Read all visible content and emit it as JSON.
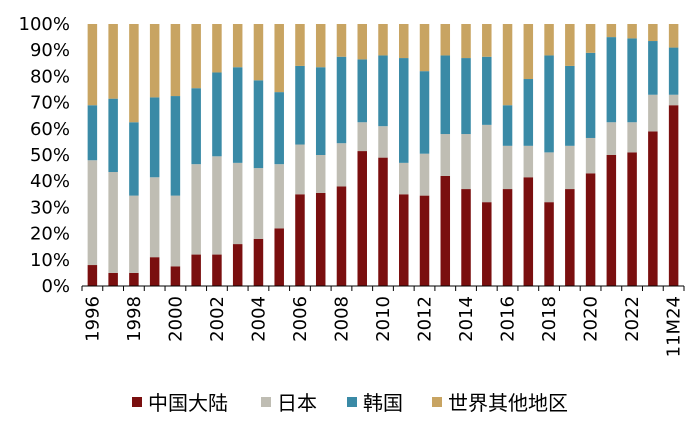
{
  "chart_data": {
    "type": "bar",
    "stacked": true,
    "title": "",
    "xlabel": "",
    "ylabel": "",
    "ylim": [
      0,
      100
    ],
    "y_ticks": [
      "0%",
      "10%",
      "20%",
      "30%",
      "40%",
      "50%",
      "60%",
      "70%",
      "80%",
      "90%",
      "100%"
    ],
    "categories": [
      "1996",
      "1997",
      "1998",
      "1999",
      "2000",
      "2001",
      "2002",
      "2003",
      "2004",
      "2005",
      "2006",
      "2007",
      "2008",
      "2009",
      "2010",
      "2011",
      "2012",
      "2013",
      "2014",
      "2015",
      "2016",
      "2017",
      "2018",
      "2019",
      "2020",
      "2021",
      "2022",
      "2023",
      "11M24"
    ],
    "x_tick_labels": [
      "1996",
      "1998",
      "2000",
      "2002",
      "2004",
      "2006",
      "2008",
      "2010",
      "2012",
      "2014",
      "2016",
      "2018",
      "2020",
      "2022",
      "11M24"
    ],
    "series": [
      {
        "name": "中国大陆",
        "color": "#7a0f0f",
        "values": [
          8,
          5,
          5,
          11,
          7.5,
          12,
          12,
          16,
          18,
          22,
          35,
          35.5,
          38,
          51.5,
          49,
          35,
          34.5,
          42,
          37,
          32,
          37,
          41.5,
          32,
          37,
          43,
          50,
          51,
          59,
          69
        ]
      },
      {
        "name": "日本",
        "color": "#bfbdb3",
        "values": [
          40,
          38.5,
          29.5,
          30.5,
          27,
          34.5,
          37.5,
          31,
          27,
          24.5,
          19,
          14.5,
          16.5,
          11,
          12,
          12,
          16,
          16,
          21,
          29.5,
          16.5,
          12,
          19,
          16.5,
          13.5,
          12.5,
          11.5,
          14,
          4
        ]
      },
      {
        "name": "韩国",
        "color": "#3a8aa6",
        "values": [
          21,
          28,
          28,
          30.5,
          38,
          29,
          32,
          36.5,
          33.5,
          27.5,
          30,
          33.5,
          33,
          24,
          27,
          40,
          31.5,
          30,
          29,
          26,
          15.5,
          25.5,
          37,
          30.5,
          32.5,
          32.5,
          32,
          20.5,
          18
        ]
      },
      {
        "name": "世界其他地区",
        "color": "#c8a462",
        "values": [
          31,
          28.5,
          37.5,
          28,
          27.5,
          24.5,
          18.5,
          16.5,
          21.5,
          26,
          16,
          16.5,
          12.5,
          13.5,
          12,
          13,
          18,
          12,
          13,
          12.5,
          31,
          21,
          12,
          16,
          11,
          5,
          5.5,
          6.5,
          9
        ]
      }
    ]
  }
}
